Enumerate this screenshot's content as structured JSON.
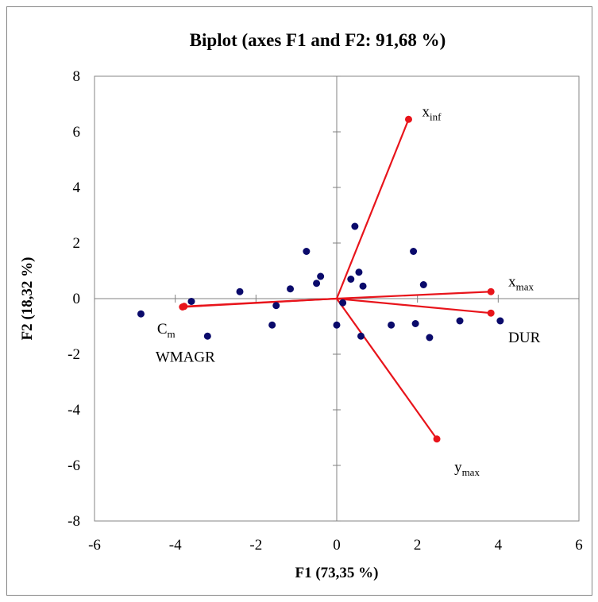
{
  "chart_data": {
    "type": "scatter",
    "title": "Biplot (axes F1 and F2: 91,68 %)",
    "xlabel": "F1 (73,35 %)",
    "ylabel": "F2 (18,32 %)",
    "xlim": [
      -6,
      6
    ],
    "ylim": [
      -8,
      8
    ],
    "x_ticks": [
      -6,
      -4,
      -2,
      0,
      2,
      4,
      6
    ],
    "y_ticks": [
      -8,
      -6,
      -4,
      -2,
      0,
      2,
      4,
      6,
      8
    ],
    "x_tick_labels": [
      "-6",
      "-4",
      "-2",
      "0",
      "2",
      "4",
      "6"
    ],
    "y_tick_labels": [
      "-8",
      "-6",
      "-4",
      "-2",
      "0",
      "2",
      "4",
      "6",
      "8"
    ],
    "grid": false,
    "colors": {
      "observations": "#0a0a6b",
      "variables": "#e8141b",
      "axis": "#808080",
      "frame": "#868686"
    },
    "observations": [
      {
        "x": -4.85,
        "y": -0.55
      },
      {
        "x": -3.6,
        "y": -0.1
      },
      {
        "x": -3.2,
        "y": -1.35
      },
      {
        "x": -2.4,
        "y": 0.25
      },
      {
        "x": -1.6,
        "y": -0.95
      },
      {
        "x": -1.5,
        "y": -0.25
      },
      {
        "x": -1.15,
        "y": 0.35
      },
      {
        "x": -0.75,
        "y": 1.7
      },
      {
        "x": -0.5,
        "y": 0.55
      },
      {
        "x": -0.4,
        "y": 0.8
      },
      {
        "x": 0.0,
        "y": -0.95
      },
      {
        "x": 0.15,
        "y": -0.15
      },
      {
        "x": 0.35,
        "y": 0.7
      },
      {
        "x": 0.45,
        "y": 2.6
      },
      {
        "x": 0.55,
        "y": 0.95
      },
      {
        "x": 0.6,
        "y": -1.35
      },
      {
        "x": 0.65,
        "y": 0.45
      },
      {
        "x": 1.35,
        "y": -0.95
      },
      {
        "x": 1.9,
        "y": 1.7
      },
      {
        "x": 1.95,
        "y": -0.9
      },
      {
        "x": 2.15,
        "y": 0.5
      },
      {
        "x": 2.3,
        "y": -1.4
      },
      {
        "x": 3.05,
        "y": -0.8
      },
      {
        "x": 4.05,
        "y": -0.8
      }
    ],
    "variables": [
      {
        "name": "x",
        "sub": "inf",
        "x": 1.78,
        "y": 6.45
      },
      {
        "name": "x",
        "sub": "max",
        "x": 3.82,
        "y": 0.25
      },
      {
        "name": "DUR",
        "sub": "",
        "x": 3.82,
        "y": -0.52
      },
      {
        "name": "y",
        "sub": "max",
        "x": 2.48,
        "y": -5.05
      },
      {
        "name": "C",
        "sub": "m",
        "x": -3.78,
        "y": -0.28
      },
      {
        "name": "WMAGR",
        "sub": "",
        "x": -3.82,
        "y": -0.3
      }
    ]
  }
}
